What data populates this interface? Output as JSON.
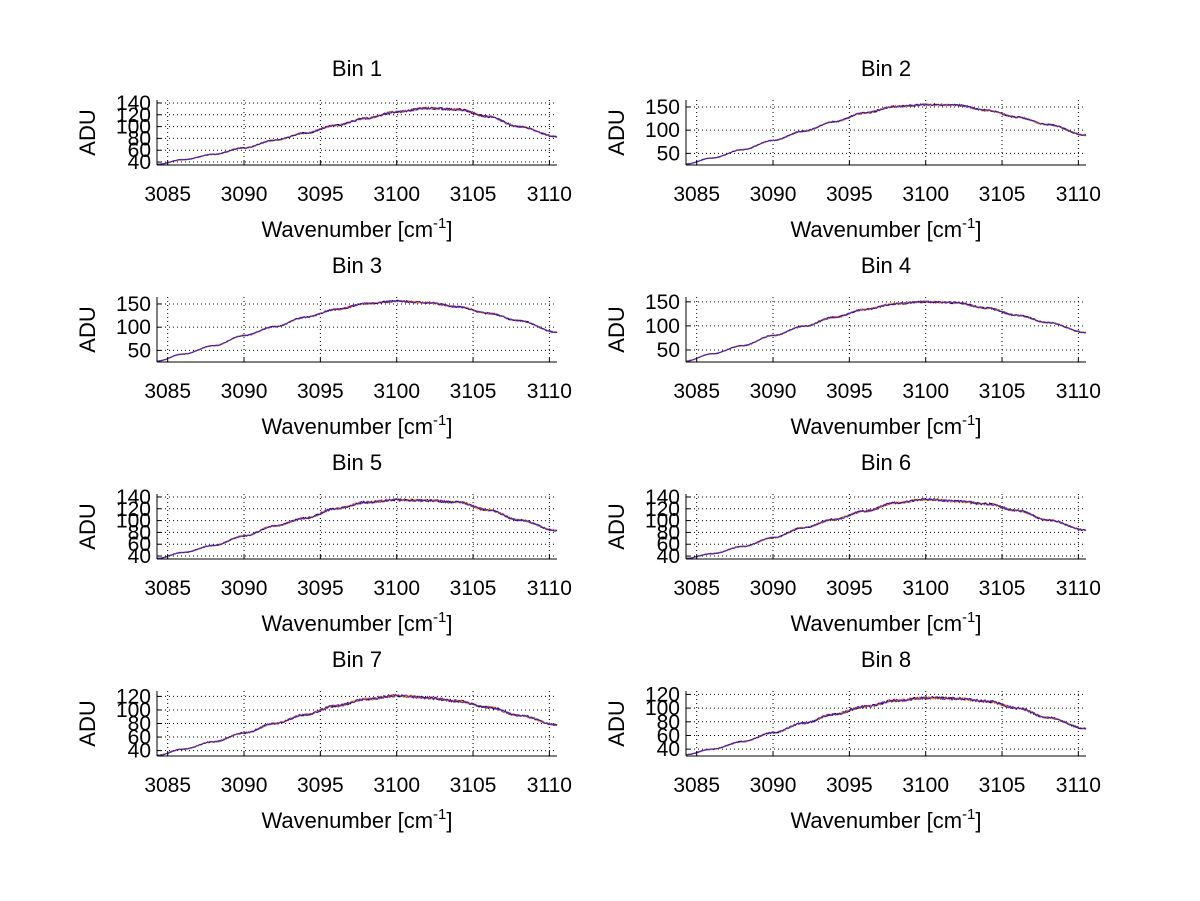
{
  "figure": {
    "background": "#ffffff",
    "line_colors": [
      "#000000",
      "#ff0000",
      "#ffa500",
      "#0000ff"
    ]
  },
  "chart_data": [
    {
      "type": "line",
      "title": "Bin 1",
      "xlabel": "Wavenumber [cm",
      "xlabel_sup": "-1",
      "xlabel_end": "]",
      "ylabel": "ADU",
      "xlim": [
        3084.3,
        3110.5
      ],
      "ylim": [
        35,
        145
      ],
      "xticks": [
        3085,
        3090,
        3095,
        3100,
        3105,
        3110
      ],
      "yticks": [
        40,
        60,
        80,
        100,
        120,
        140
      ],
      "grid": true,
      "x": [
        3084.3,
        3086,
        3088,
        3090,
        3092,
        3094,
        3096,
        3098,
        3100,
        3102,
        3104,
        3106,
        3108,
        3110.5
      ],
      "y": [
        36,
        44,
        53,
        64,
        77,
        89,
        102,
        114,
        125,
        131,
        129,
        117,
        100,
        83
      ]
    },
    {
      "type": "line",
      "title": "Bin 2",
      "xlabel": "Wavenumber [cm",
      "xlabel_sup": "-1",
      "xlabel_end": "]",
      "ylabel": "ADU",
      "xlim": [
        3084.3,
        3110.5
      ],
      "ylim": [
        25,
        165
      ],
      "xticks": [
        3085,
        3090,
        3095,
        3100,
        3105,
        3110
      ],
      "yticks": [
        50,
        100,
        150
      ],
      "grid": true,
      "x": [
        3084.3,
        3086,
        3088,
        3090,
        3092,
        3094,
        3096,
        3098,
        3100,
        3102,
        3104,
        3106,
        3108,
        3110.5
      ],
      "y": [
        27,
        40,
        58,
        78,
        98,
        118,
        137,
        151,
        155,
        154,
        143,
        128,
        112,
        89
      ]
    },
    {
      "type": "line",
      "title": "Bin 3",
      "xlabel": "Wavenumber [cm",
      "xlabel_sup": "-1",
      "xlabel_end": "]",
      "ylabel": "ADU",
      "xlim": [
        3084.3,
        3110.5
      ],
      "ylim": [
        25,
        165
      ],
      "xticks": [
        3085,
        3090,
        3095,
        3100,
        3105,
        3110
      ],
      "yticks": [
        50,
        100,
        150
      ],
      "grid": true,
      "x": [
        3084.3,
        3086,
        3088,
        3090,
        3092,
        3094,
        3096,
        3098,
        3100,
        3102,
        3104,
        3106,
        3108,
        3110.5
      ],
      "y": [
        27,
        42,
        60,
        82,
        101,
        121,
        138,
        151,
        156,
        153,
        144,
        130,
        114,
        89
      ]
    },
    {
      "type": "line",
      "title": "Bin 4",
      "xlabel": "Wavenumber [cm",
      "xlabel_sup": "-1",
      "xlabel_end": "]",
      "ylabel": "ADU",
      "xlim": [
        3084.3,
        3110.5
      ],
      "ylim": [
        25,
        160
      ],
      "xticks": [
        3085,
        3090,
        3095,
        3100,
        3105,
        3110
      ],
      "yticks": [
        50,
        100,
        150
      ],
      "grid": true,
      "x": [
        3084.3,
        3086,
        3088,
        3090,
        3092,
        3094,
        3096,
        3098,
        3100,
        3102,
        3104,
        3106,
        3108,
        3110.5
      ],
      "y": [
        27,
        42,
        59,
        80,
        99,
        118,
        134,
        146,
        150,
        148,
        137,
        122,
        107,
        86
      ]
    },
    {
      "type": "line",
      "title": "Bin 5",
      "xlabel": "Wavenumber [cm",
      "xlabel_sup": "-1",
      "xlabel_end": "]",
      "ylabel": "ADU",
      "xlim": [
        3084.3,
        3110.5
      ],
      "ylim": [
        35,
        145
      ],
      "xticks": [
        3085,
        3090,
        3095,
        3100,
        3105,
        3110
      ],
      "yticks": [
        40,
        60,
        80,
        100,
        120,
        140
      ],
      "grid": true,
      "x": [
        3084.3,
        3086,
        3088,
        3090,
        3092,
        3094,
        3096,
        3098,
        3100,
        3102,
        3104,
        3106,
        3108,
        3110.5
      ],
      "y": [
        36,
        46,
        58,
        74,
        91,
        104,
        120,
        131,
        135,
        134,
        131,
        118,
        101,
        83
      ]
    },
    {
      "type": "line",
      "title": "Bin 6",
      "xlabel": "Wavenumber [cm",
      "xlabel_sup": "-1",
      "xlabel_end": "]",
      "ylabel": "ADU",
      "xlim": [
        3084.3,
        3110.5
      ],
      "ylim": [
        35,
        145
      ],
      "xticks": [
        3085,
        3090,
        3095,
        3100,
        3105,
        3110
      ],
      "yticks": [
        40,
        60,
        80,
        100,
        120,
        140
      ],
      "grid": true,
      "x": [
        3084.3,
        3086,
        3088,
        3090,
        3092,
        3094,
        3096,
        3098,
        3100,
        3102,
        3104,
        3106,
        3108,
        3110.5
      ],
      "y": [
        36,
        44,
        56,
        71,
        88,
        102,
        116,
        130,
        136,
        133,
        128,
        117,
        101,
        84
      ]
    },
    {
      "type": "line",
      "title": "Bin 7",
      "xlabel": "Wavenumber [cm",
      "xlabel_sup": "-1",
      "xlabel_end": "]",
      "ylabel": "ADU",
      "xlim": [
        3084.3,
        3110.5
      ],
      "ylim": [
        32,
        128
      ],
      "xticks": [
        3085,
        3090,
        3095,
        3100,
        3105,
        3110
      ],
      "yticks": [
        40,
        60,
        80,
        100,
        120
      ],
      "grid": true,
      "x": [
        3084.3,
        3086,
        3088,
        3090,
        3092,
        3094,
        3096,
        3098,
        3100,
        3102,
        3104,
        3106,
        3108,
        3110.5
      ],
      "y": [
        33,
        42,
        53,
        66,
        80,
        93,
        106,
        116,
        121,
        118,
        113,
        104,
        92,
        78
      ]
    },
    {
      "type": "line",
      "title": "Bin 8",
      "xlabel": "Wavenumber [cm",
      "xlabel_sup": "-1",
      "xlabel_end": "]",
      "ylabel": "ADU",
      "xlim": [
        3084.3,
        3110.5
      ],
      "ylim": [
        30,
        125
      ],
      "xticks": [
        3085,
        3090,
        3095,
        3100,
        3105,
        3110
      ],
      "yticks": [
        40,
        60,
        80,
        100,
        120
      ],
      "grid": true,
      "x": [
        3084.3,
        3086,
        3088,
        3090,
        3092,
        3094,
        3096,
        3098,
        3100,
        3102,
        3104,
        3106,
        3108,
        3110.5
      ],
      "y": [
        32,
        40,
        51,
        64,
        78,
        91,
        102,
        111,
        115,
        114,
        110,
        100,
        86,
        70
      ]
    }
  ]
}
